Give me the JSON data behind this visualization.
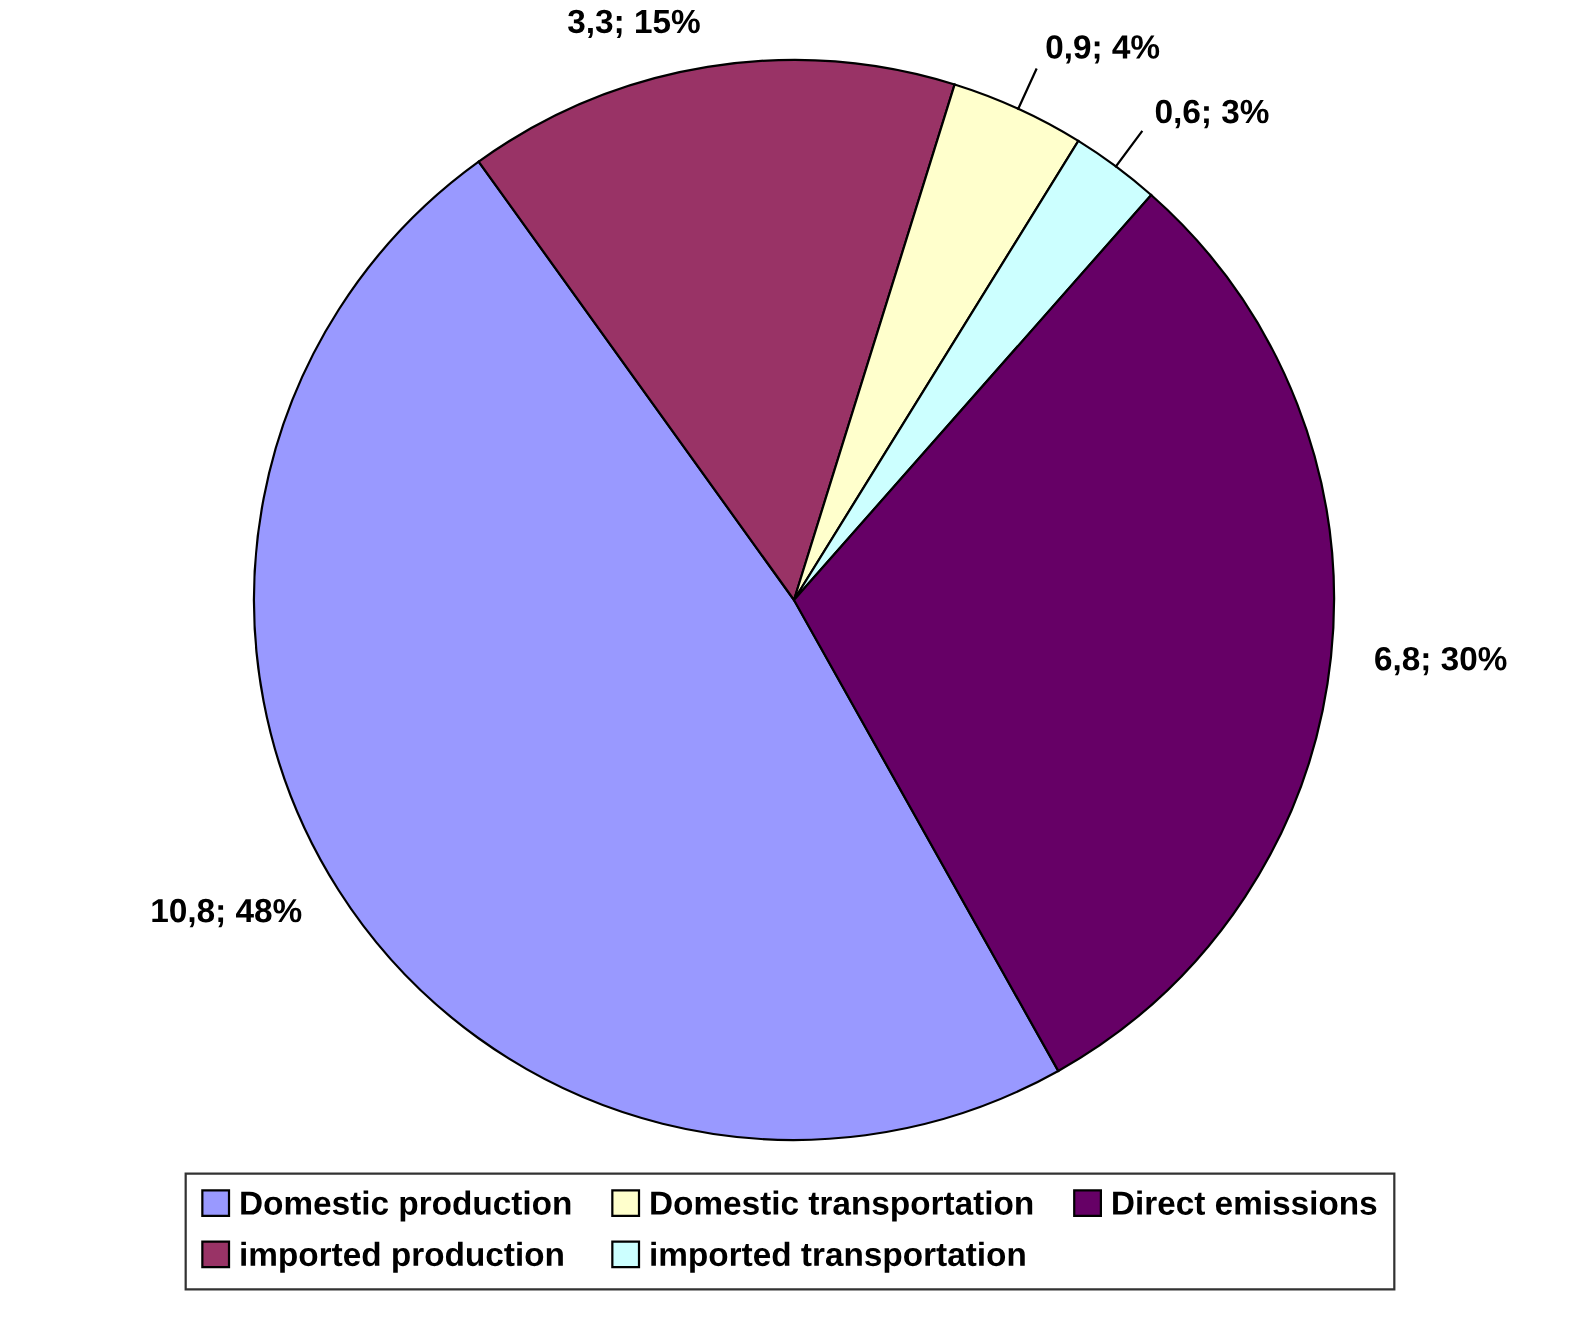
{
  "chart_data": {
    "type": "pie",
    "categories": [
      "Domestic production",
      "imported production",
      "Domestic transportation",
      "imported transportation",
      "Direct emissions"
    ],
    "values": [
      10.8,
      3.3,
      0.9,
      0.6,
      6.8
    ],
    "value_labels": [
      "10,8; 48%",
      "3,3; 15%",
      "0,9; 4%",
      "0,6; 3%",
      "6,8; 30%"
    ],
    "colors": [
      "#9999ff",
      "#993366",
      "#ffffcc",
      "#ccffff",
      "#660066"
    ],
    "legend": "bottom"
  }
}
